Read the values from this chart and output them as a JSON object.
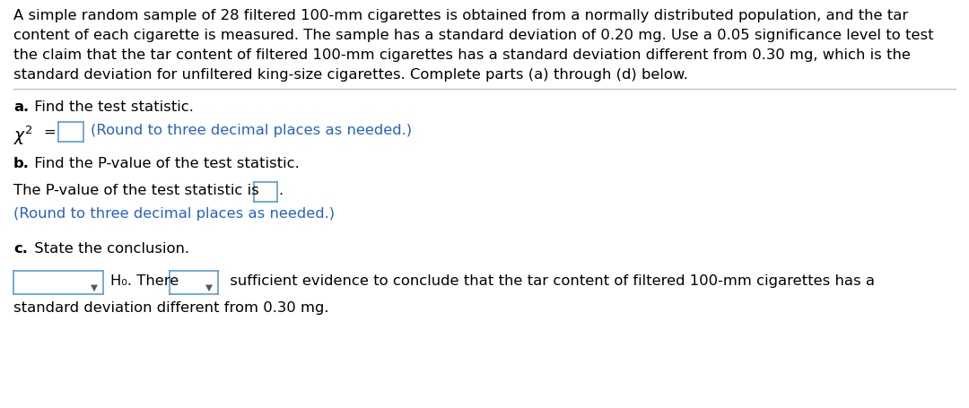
{
  "bg_color": "#ffffff",
  "text_color": "#000000",
  "blue_color": "#2563c7",
  "box_border_color": "#5b9bd5",
  "paragraph_line1": "A simple random sample of 28 filtered 100-mm cigarettes is obtained from a normally distributed population, and the tar",
  "paragraph_line2": "content of each cigarette is measured. The sample has a standard deviation of 0.20 mg. Use a 0.05 significance level to test",
  "paragraph_line3": "the claim that the tar content of filtered 100-mm cigarettes has a standard deviation different from 0.30 mg, which is the",
  "paragraph_line4": "standard deviation for unfiltered king-size cigarettes. Complete parts (a) through (d) below.",
  "round_note": "(Round to three decimal places as needed.)",
  "pvalue_pre": "The P-value of the test statistic is",
  "pvalue_post": ".",
  "conclusion_h0": "H₀. There",
  "conclusion_end": " sufficient evidence to conclude that the tar content of filtered 100-mm cigarettes has a",
  "conclusion_last": "standard deviation different from 0.30 mg.",
  "font_size": 11.8,
  "font_size_bold": 11.8,
  "font_size_chi": 13.5
}
